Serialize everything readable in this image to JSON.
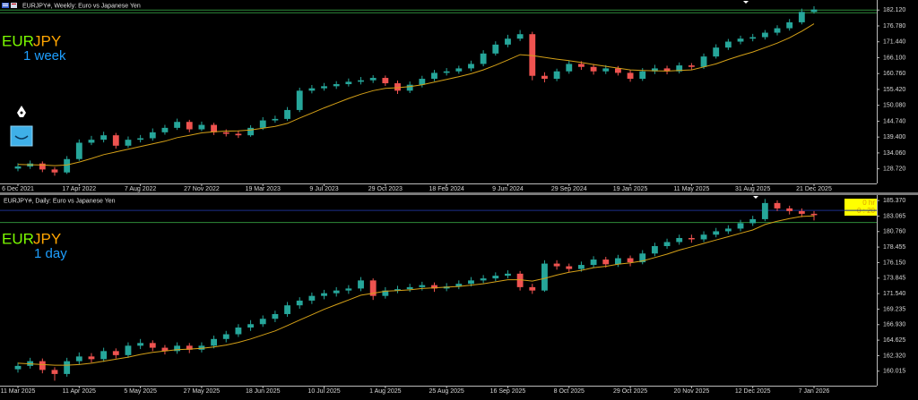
{
  "chart_data": [
    {
      "type": "candlestick",
      "title": "EURJPY#, Weekly:  Euro vs Japanese Yen",
      "annotation_base": "EUR",
      "annotation_quote": "JPY",
      "annotation_period": "1 week",
      "up_color": "#26a69a",
      "down_color": "#ef5350",
      "categories": [
        "6 Dec 2021",
        null,
        null,
        null,
        null,
        "17 Apr 2022",
        null,
        null,
        null,
        null,
        "7 Aug 2022",
        null,
        null,
        null,
        null,
        "27 Nov 2022",
        null,
        null,
        null,
        null,
        "19 Mar 2023",
        null,
        null,
        null,
        null,
        "9 Jul 2023",
        null,
        null,
        null,
        null,
        "29 Oct 2023",
        null,
        null,
        null,
        null,
        "18 Feb 2024",
        null,
        null,
        null,
        null,
        "9 Jun 2024",
        null,
        null,
        null,
        null,
        "29 Sep 2024",
        null,
        null,
        null,
        null,
        "19 Jan 2025",
        null,
        null,
        null,
        null,
        "11 May 2025",
        null,
        null,
        null,
        null,
        "31 Aug 2025",
        null,
        null,
        null,
        null,
        "21 Dec 2025"
      ],
      "open": [
        128.8,
        129.5,
        130.5,
        128.5,
        127.5,
        132,
        137.5,
        138.5,
        140,
        136.5,
        138.5,
        139,
        141,
        142.5,
        144.5,
        142,
        143.5,
        141,
        140.5,
        140,
        142.5,
        145,
        145.5,
        148.5,
        155,
        155.8,
        156.5,
        157.2,
        158,
        158.5,
        159.3,
        157.5,
        155,
        157,
        159,
        161,
        161.5,
        162.5,
        164,
        167.5,
        170.5,
        172.5,
        174,
        160,
        159,
        161.5,
        164,
        163,
        161.5,
        162.5,
        161,
        159,
        161.5,
        162.5,
        161.5,
        163.5,
        163,
        166.5,
        169.5,
        171.5,
        172.5,
        173,
        174.5,
        176,
        178,
        181.5
      ],
      "high": [
        130.6,
        131.5,
        131.2,
        129.3,
        133,
        138.6,
        139.8,
        141.2,
        140.8,
        139.6,
        140.1,
        142.3,
        143.5,
        145.6,
        145.2,
        144.6,
        144.2,
        142,
        141.6,
        143.4,
        146.1,
        146.6,
        149.5,
        156,
        156.9,
        157.6,
        158.2,
        159.1,
        159.6,
        160.2,
        160.1,
        158.4,
        158.1,
        160,
        162,
        162.6,
        163.4,
        165.1,
        168.6,
        171.6,
        173.8,
        175.4,
        174.8,
        161.2,
        162.4,
        165.1,
        164.9,
        164,
        163.6,
        163.3,
        162,
        162.6,
        163.7,
        163.4,
        164.5,
        164.3,
        167.5,
        170.6,
        172.4,
        173.5,
        174.1,
        175.4,
        177,
        179.1,
        182.6,
        183.4
      ],
      "low": [
        127.9,
        128.7,
        127.6,
        126.4,
        127,
        131.4,
        136.7,
        137.6,
        135.5,
        135.8,
        137.6,
        138.2,
        140.2,
        141.8,
        141,
        141.4,
        140.1,
        139.6,
        139.1,
        139.5,
        141.8,
        144.2,
        144.9,
        147.8,
        154.1,
        155,
        155.6,
        156.4,
        157.1,
        157.6,
        156.6,
        153.9,
        154.2,
        156.1,
        158.2,
        160.1,
        160.7,
        161.6,
        163.2,
        166.8,
        169.6,
        171.7,
        158.5,
        157.8,
        158.2,
        160.7,
        162,
        160.4,
        160.6,
        160.1,
        158,
        158.3,
        160.6,
        160.5,
        160.8,
        162.1,
        162.3,
        165.8,
        168.7,
        170.6,
        171.6,
        172.2,
        173.6,
        175.2,
        177.3,
        180.9
      ],
      "close": [
        129.5,
        130.5,
        128.5,
        127.5,
        132,
        137.5,
        138.5,
        140,
        136.5,
        138.5,
        139,
        141,
        142.5,
        144.5,
        142,
        143.5,
        141,
        140.5,
        140,
        142.5,
        145,
        145.5,
        148.5,
        155,
        155.8,
        156.5,
        157.2,
        158,
        158.5,
        159.3,
        157.5,
        155,
        157,
        159,
        161,
        161.5,
        162.5,
        164,
        167.5,
        170.5,
        172.5,
        174,
        160,
        159,
        161.5,
        164,
        163,
        161.5,
        162.5,
        161,
        159,
        161.5,
        162.5,
        161.5,
        163.5,
        163,
        166.5,
        169.5,
        171.5,
        172.5,
        173,
        174.5,
        176,
        178,
        181.5,
        182.3
      ],
      "moving_average": {
        "color": "#d4a017",
        "values": [
          130.2,
          130.1,
          130,
          129.8,
          130,
          131,
          132.2,
          133.5,
          134.4,
          135.3,
          136.2,
          137.1,
          138,
          139.2,
          140,
          140.8,
          141.2,
          141.4,
          141.5,
          141.8,
          142.4,
          143,
          144,
          145.8,
          147.5,
          149.2,
          150.8,
          152.4,
          153.8,
          155,
          155.8,
          156,
          156.4,
          157,
          157.9,
          158.8,
          159.7,
          160.7,
          162,
          163.6,
          165.3,
          167.1,
          166.8,
          166.2,
          165.6,
          165.1,
          164.5,
          163.8,
          163.2,
          162.6,
          162,
          161.8,
          161.7,
          161.6,
          161.8,
          162,
          163,
          164,
          165.5,
          166.8,
          168,
          169.5,
          171,
          172.8,
          175,
          177.5
        ]
      },
      "price_lines": [
        {
          "value": 182.12,
          "color": "#2e8b3a"
        },
        {
          "value": 181.2,
          "color": "#2e8b3a"
        }
      ],
      "ylim": [
        123.8,
        185.5
      ],
      "yticks": [
        {
          "value": 128.72,
          "label": "128.720"
        },
        {
          "value": 134.06,
          "label": "134.060"
        },
        {
          "value": 139.4,
          "label": "139.400"
        },
        {
          "value": 144.74,
          "label": "144.740"
        },
        {
          "value": 150.08,
          "label": "150.080"
        },
        {
          "value": 155.42,
          "label": "155.420"
        },
        {
          "value": 160.76,
          "label": "160.760"
        },
        {
          "value": 166.1,
          "label": "166.100"
        },
        {
          "value": 171.44,
          "label": "171.440"
        },
        {
          "value": 176.78,
          "label": "176.780"
        },
        {
          "value": 182.12,
          "label": "182.120"
        }
      ]
    },
    {
      "type": "candlestick",
      "title": "EURJPY#, Daily:  Euro vs Japanese Yen",
      "annotation_base": "EUR",
      "annotation_quote": "JPY",
      "annotation_period": "1 day",
      "countdown": [
        "0 hr",
        "0 : 20"
      ],
      "up_color": "#26a69a",
      "down_color": "#ef5350",
      "categories": [
        "11 Mar 2025",
        null,
        null,
        null,
        null,
        "11 Apr 2025",
        null,
        null,
        null,
        null,
        "5 May 2025",
        null,
        null,
        null,
        null,
        "27 May 2025",
        null,
        null,
        null,
        null,
        "18 Jun 2025",
        null,
        null,
        null,
        null,
        "10 Jul 2025",
        null,
        null,
        null,
        null,
        "1 Aug 2025",
        null,
        null,
        null,
        null,
        "25 Aug 2025",
        null,
        null,
        null,
        null,
        "16 Sep 2025",
        null,
        null,
        null,
        null,
        "8 Oct 2025",
        null,
        null,
        null,
        null,
        "29 Oct 2025",
        null,
        null,
        null,
        null,
        "20 Nov 2025",
        null,
        null,
        null,
        null,
        "12 Dec 2025",
        null,
        null,
        null,
        null,
        "7 Jan 2026"
      ],
      "open": [
        160.3,
        160.8,
        161.5,
        160.2,
        159.6,
        161.5,
        162.2,
        161.8,
        163.0,
        162.4,
        163.8,
        164.2,
        163.5,
        163.0,
        163.8,
        163.2,
        163.8,
        164.8,
        165.5,
        166.5,
        167.0,
        167.8,
        168.5,
        169.8,
        170.5,
        171.2,
        171.6,
        172.0,
        172.3,
        173.5,
        171.2,
        172.0,
        172.2,
        172.5,
        172.8,
        172.3,
        172.6,
        173.0,
        173.5,
        173.8,
        174.2,
        174.5,
        172.5,
        172.0,
        176.0,
        175.6,
        175.2,
        175.8,
        176.6,
        175.9,
        176.8,
        176.2,
        177.5,
        178.6,
        179.2,
        179.8,
        179.6,
        180.3,
        180.8,
        181.2,
        182.0,
        182.6,
        185.0,
        184.2,
        183.8,
        183.4
      ],
      "high": [
        161.3,
        162.0,
        161.9,
        160.6,
        162.0,
        162.8,
        162.7,
        163.5,
        163.4,
        164.3,
        164.8,
        164.6,
        163.9,
        164.3,
        164.2,
        164.3,
        165.3,
        166.0,
        167.0,
        167.6,
        168.3,
        169.0,
        170.3,
        171.0,
        171.7,
        172.1,
        172.5,
        172.8,
        174.0,
        173.8,
        172.5,
        172.7,
        173.0,
        173.3,
        173.2,
        173.1,
        173.5,
        174.0,
        174.3,
        174.7,
        175.0,
        174.9,
        173.0,
        176.5,
        176.5,
        176.0,
        176.3,
        177.1,
        177.0,
        177.3,
        177.2,
        178.0,
        179.1,
        179.7,
        180.3,
        180.3,
        180.8,
        181.3,
        181.7,
        182.5,
        183.1,
        185.6,
        185.4,
        184.6,
        184.2,
        183.8
      ],
      "low": [
        159.8,
        160.4,
        159.7,
        158.6,
        159.2,
        161.0,
        161.3,
        161.4,
        161.9,
        162.0,
        163.3,
        163.0,
        162.5,
        162.6,
        162.7,
        162.8,
        163.4,
        164.3,
        165.1,
        166.0,
        166.6,
        167.3,
        168.1,
        169.3,
        170.0,
        170.7,
        171.1,
        171.5,
        171.9,
        170.6,
        170.8,
        171.6,
        171.8,
        172.0,
        171.8,
        171.9,
        172.2,
        172.6,
        173.1,
        173.4,
        173.8,
        172.0,
        171.5,
        171.8,
        175.1,
        174.7,
        174.8,
        175.4,
        175.4,
        175.5,
        175.6,
        175.9,
        177.1,
        178.2,
        178.8,
        179.1,
        179.2,
        179.9,
        180.4,
        180.8,
        181.6,
        182.3,
        183.8,
        183.3,
        182.9,
        182.4
      ],
      "close": [
        160.8,
        161.5,
        160.2,
        159.6,
        161.5,
        162.2,
        161.8,
        163.0,
        162.4,
        163.8,
        164.2,
        163.5,
        163.0,
        163.8,
        163.2,
        163.8,
        164.8,
        165.5,
        166.5,
        167.0,
        167.8,
        168.5,
        169.8,
        170.5,
        171.2,
        171.6,
        172.0,
        172.3,
        173.5,
        171.2,
        172.0,
        172.2,
        172.5,
        172.8,
        172.3,
        172.6,
        173.0,
        173.5,
        173.8,
        174.2,
        174.5,
        172.5,
        172.0,
        176.0,
        175.6,
        175.2,
        175.8,
        176.6,
        175.9,
        176.8,
        176.2,
        177.5,
        178.6,
        179.2,
        179.8,
        179.6,
        180.3,
        180.8,
        181.2,
        182.0,
        182.6,
        185.0,
        184.2,
        183.8,
        183.4,
        183.2
      ],
      "moving_average": {
        "color": "#d4a017",
        "values": [
          161.2,
          161.1,
          161.0,
          160.9,
          160.9,
          161.0,
          161.2,
          161.5,
          161.8,
          162.1,
          162.5,
          162.8,
          163.0,
          163.2,
          163.3,
          163.4,
          163.6,
          163.9,
          164.3,
          164.8,
          165.4,
          166.0,
          166.8,
          167.6,
          168.4,
          169.2,
          169.9,
          170.6,
          171.3,
          171.6,
          171.9,
          172.0,
          172.1,
          172.3,
          172.4,
          172.5,
          172.6,
          172.8,
          173.0,
          173.3,
          173.6,
          173.6,
          173.4,
          173.8,
          174.3,
          174.7,
          175.0,
          175.4,
          175.6,
          175.9,
          176.1,
          176.4,
          176.9,
          177.4,
          178.0,
          178.5,
          179.0,
          179.5,
          180.0,
          180.5,
          181.0,
          181.8,
          182.3,
          182.7,
          183.0,
          183.1
        ]
      },
      "price_lines": [
        {
          "value": 183.9,
          "color": "#1c2f8a"
        },
        {
          "value": 182.1,
          "color": "#2e8b3a"
        }
      ],
      "ylim": [
        157.86,
        186.18
      ],
      "yticks": [
        {
          "value": 160.015,
          "label": "160.015"
        },
        {
          "value": 162.32,
          "label": "162.320"
        },
        {
          "value": 164.625,
          "label": "164.625"
        },
        {
          "value": 166.93,
          "label": "166.930"
        },
        {
          "value": 169.235,
          "label": "169.235"
        },
        {
          "value": 171.54,
          "label": "171.540"
        },
        {
          "value": 173.845,
          "label": "173.845"
        },
        {
          "value": 176.15,
          "label": "176.150"
        },
        {
          "value": 178.455,
          "label": "178.455"
        },
        {
          "value": 180.76,
          "label": "180.760"
        },
        {
          "value": 183.065,
          "label": "183.065"
        },
        {
          "value": 185.37,
          "label": "185.370"
        }
      ]
    }
  ]
}
